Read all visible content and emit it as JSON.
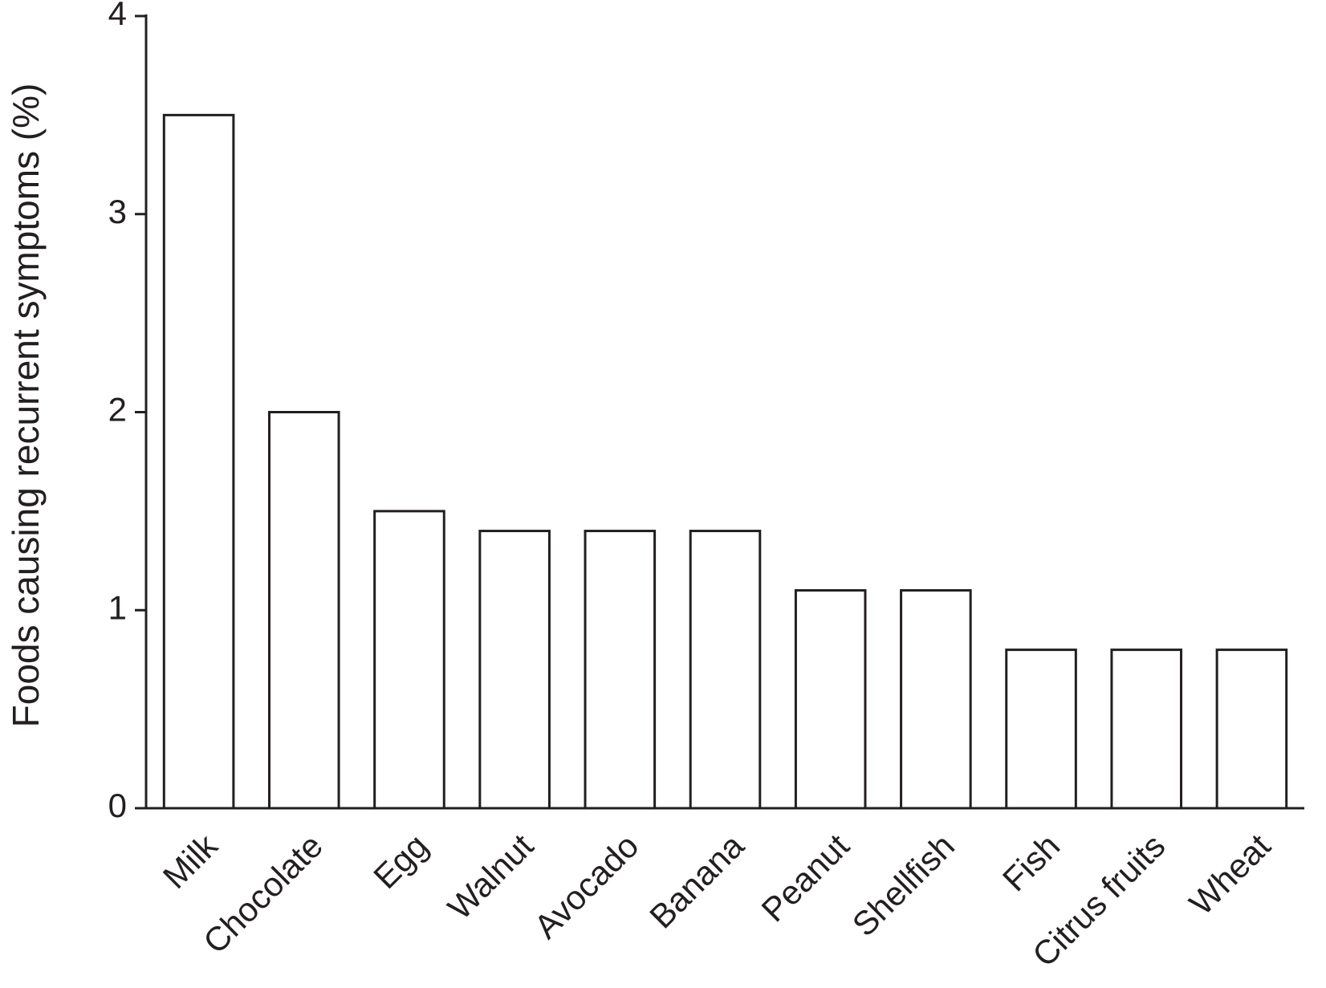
{
  "chart_data": {
    "type": "bar",
    "y_label": "Foods causing recurrent symptoms (%)",
    "categories": [
      "Milk",
      "Chocolate",
      "Egg",
      "Walnut",
      "Avocado",
      "Banana",
      "Peanut",
      "Shellfish",
      "Fish",
      "Citrus fruits",
      "Wheat"
    ],
    "values": [
      3.5,
      2.0,
      1.5,
      1.4,
      1.4,
      1.4,
      1.1,
      1.1,
      0.8,
      0.8,
      0.8
    ],
    "color": "#ffffff",
    "ylim": [
      0,
      4
    ],
    "yticks": [
      0,
      1,
      2,
      3,
      4
    ],
    "grid": false
  }
}
